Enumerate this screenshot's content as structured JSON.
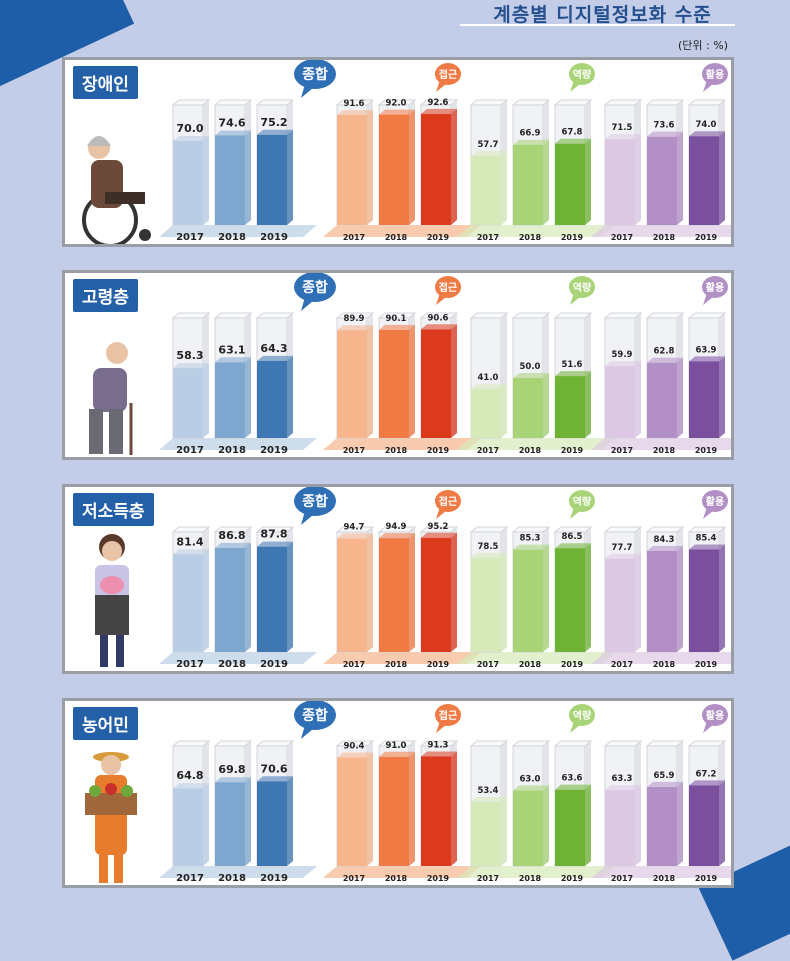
{
  "header": {
    "title": "계층별 디지털정보화 수준",
    "unit": "(단위 : %)"
  },
  "colors": {
    "overall": [
      "#b9cee4",
      "#7ea7cf",
      "#3f77b2"
    ],
    "access": [
      "#f6b58c",
      "#f07a44",
      "#dc3a1d"
    ],
    "ability": [
      "#d5eab8",
      "#a8d477",
      "#6fb334"
    ],
    "usage": [
      "#ddc8e4",
      "#b290c6",
      "#7a4f9e"
    ]
  },
  "chart_data": {
    "type": "bar",
    "categories": [
      "2017",
      "2018",
      "2019"
    ],
    "metrics": [
      {
        "key": "overall",
        "label": "종합"
      },
      {
        "key": "access",
        "label": "접근"
      },
      {
        "key": "ability",
        "label": "역량"
      },
      {
        "key": "usage",
        "label": "활용"
      }
    ],
    "groups": [
      {
        "name": "장애인",
        "values": {
          "overall": [
            70.0,
            74.6,
            75.2
          ],
          "access": [
            91.6,
            92.0,
            92.6
          ],
          "ability": [
            57.7,
            66.9,
            67.8
          ],
          "usage": [
            71.5,
            73.6,
            74.0
          ]
        }
      },
      {
        "name": "고령층",
        "values": {
          "overall": [
            58.3,
            63.1,
            64.3
          ],
          "access": [
            89.9,
            90.1,
            90.6
          ],
          "ability": [
            41.0,
            50.0,
            51.6
          ],
          "usage": [
            59.9,
            62.8,
            63.9
          ]
        }
      },
      {
        "name": "저소득층",
        "values": {
          "overall": [
            81.4,
            86.8,
            87.8
          ],
          "access": [
            94.7,
            94.9,
            95.2
          ],
          "ability": [
            78.5,
            85.3,
            86.5
          ],
          "usage": [
            77.7,
            84.3,
            85.4
          ]
        }
      },
      {
        "name": "농어민",
        "values": {
          "overall": [
            64.8,
            69.8,
            70.6
          ],
          "access": [
            90.4,
            91.0,
            91.3
          ],
          "ability": [
            53.4,
            63.0,
            63.6
          ],
          "usage": [
            63.3,
            65.9,
            67.2
          ]
        }
      }
    ],
    "ylim": [
      0,
      100
    ]
  }
}
